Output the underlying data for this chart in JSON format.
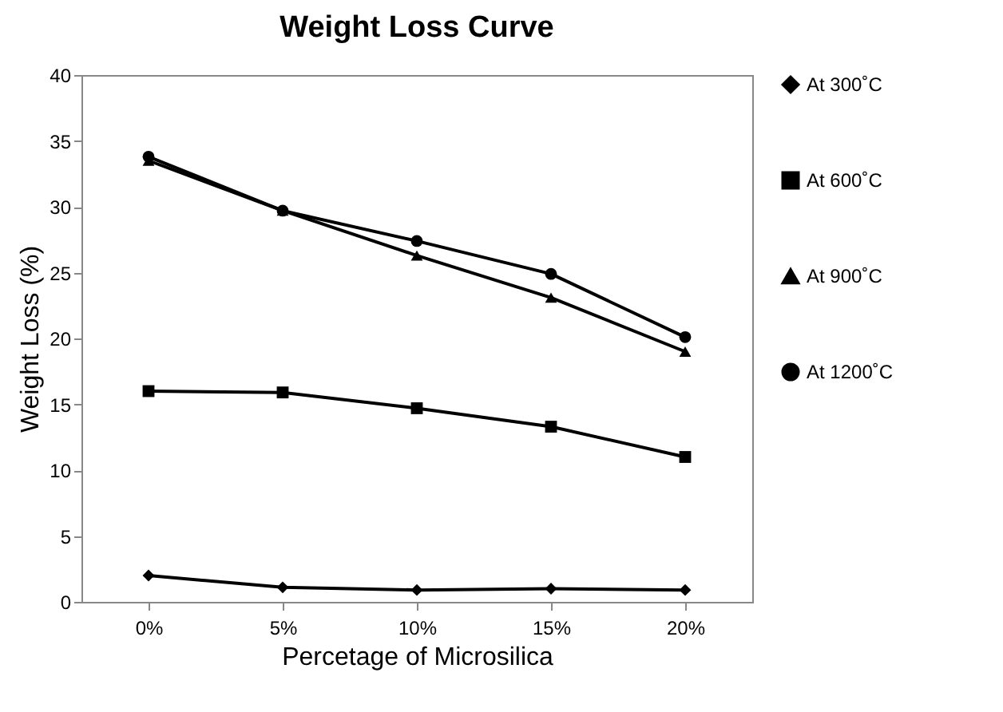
{
  "chart_data": {
    "type": "line",
    "title": "Weight Loss Curve",
    "xlabel": "Percetage of Microsilica",
    "ylabel": "Weight Loss (%)",
    "categories": [
      "0%",
      "5%",
      "10%",
      "15%",
      "20%"
    ],
    "series": [
      {
        "name": "At 300˚C",
        "color": "#000000",
        "marker": "diamond",
        "values": [
          2.0,
          1.1,
          0.9,
          1.0,
          0.9
        ]
      },
      {
        "name": "At 600˚C",
        "color": "#000000",
        "marker": "square",
        "values": [
          16.0,
          15.9,
          14.7,
          13.3,
          11.0
        ]
      },
      {
        "name": "At 900˚C",
        "color": "#000000",
        "marker": "triangle",
        "values": [
          33.5,
          29.7,
          26.3,
          23.1,
          19.0
        ]
      },
      {
        "name": "At 1200˚C",
        "color": "#000000",
        "marker": "circle",
        "values": [
          33.8,
          29.7,
          27.4,
          24.9,
          20.1
        ]
      }
    ],
    "ylim": [
      0,
      40
    ],
    "yticks": [
      0,
      5,
      10,
      15,
      20,
      25,
      30,
      35,
      40
    ],
    "legend": "right",
    "grid": false
  }
}
